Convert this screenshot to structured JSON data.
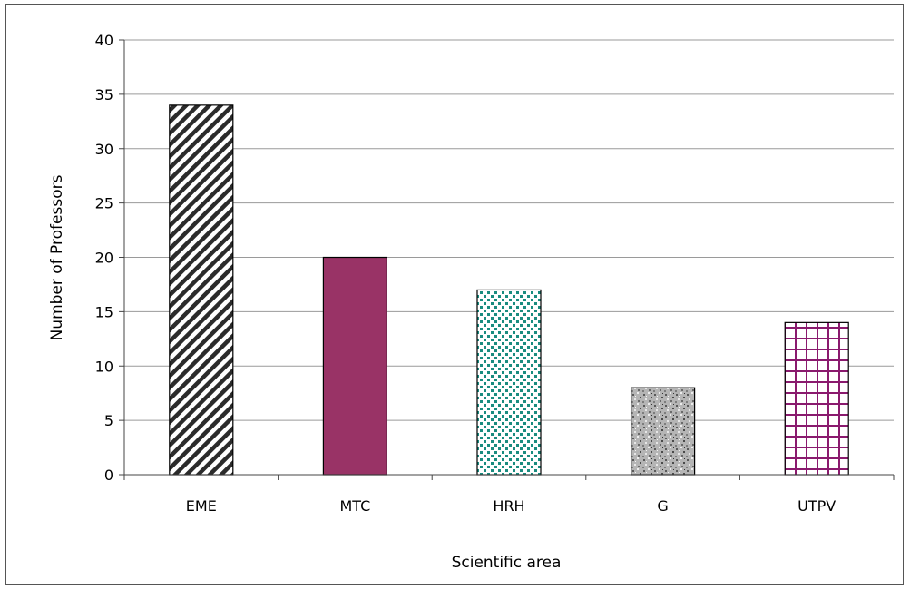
{
  "chart_data": {
    "type": "bar",
    "title": "",
    "xlabel": "Scientific area",
    "ylabel": "Number of Professors",
    "categories": [
      "EME",
      "MTC",
      "HRH",
      "G",
      "UTPV"
    ],
    "values": [
      34,
      20,
      17,
      8,
      14
    ],
    "ylim": [
      0,
      40
    ],
    "yticks": [
      "0",
      "5",
      "10",
      "15",
      "20",
      "25",
      "30",
      "35",
      "40"
    ],
    "grid": true,
    "legend": "none",
    "bar_styles": [
      {
        "pattern": "diagonal-stripes",
        "color": "#2b2b2b"
      },
      {
        "pattern": "solid",
        "color": "#993366"
      },
      {
        "pattern": "dots",
        "color": "#1a8c80"
      },
      {
        "pattern": "granite",
        "color": "#8a8a8a"
      },
      {
        "pattern": "grid",
        "color": "#8a1a6e"
      }
    ]
  }
}
